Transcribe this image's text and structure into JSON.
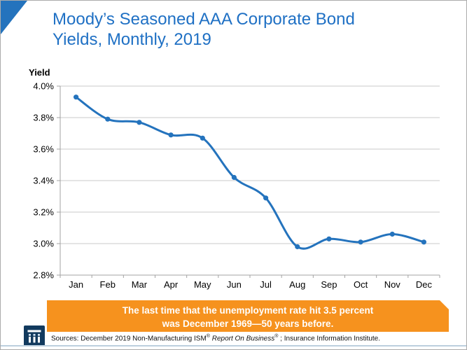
{
  "page": {
    "title_line1": "Moody’s Seasoned AAA Corporate Bond",
    "title_line2": "Yields, Monthly, 2019"
  },
  "chart_data": {
    "type": "line",
    "title": "Moody’s Seasoned AAA Corporate Bond Yields, Monthly, 2019",
    "ylabel": "Yield",
    "xlabel": "",
    "categories": [
      "Jan",
      "Feb",
      "Mar",
      "Apr",
      "May",
      "Jun",
      "Jul",
      "Aug",
      "Sep",
      "Oct",
      "Nov",
      "Dec"
    ],
    "series": [
      {
        "name": "Moody's Seasoned AAA Corporate Bond Yield",
        "values": [
          3.93,
          3.79,
          3.77,
          3.69,
          3.67,
          3.42,
          3.29,
          2.98,
          3.03,
          3.01,
          3.06,
          3.01
        ]
      }
    ],
    "ylim": [
      2.8,
      4.0
    ],
    "yticks": {
      "values": [
        4.0,
        3.8,
        3.6,
        3.4,
        3.2,
        3.0,
        2.8
      ],
      "labels": [
        "4.0%",
        "3.8%",
        "3.6%",
        "3.4%",
        "3.2%",
        "3.0%",
        "2.8%"
      ]
    },
    "grid": true,
    "legend": "none",
    "line_smooth": true
  },
  "banner": {
    "line1": "The last time that the unemployment rate hit 3.5 percent",
    "line2": "was December 1969—50 years before."
  },
  "footer": {
    "logo_name": "iii-logo",
    "sources_prefix": "Sources: December 2019 Non-Manufacturing ISM",
    "sources_reg1": "®",
    "sources_italic": " Report On Business",
    "sources_reg2": "®",
    "sources_suffix": " ; Insurance Information Institute."
  },
  "colors": {
    "title_blue": "#1f70c4",
    "line_blue": "#2473bd",
    "orange": "#f6921e",
    "navy": "#123a5e",
    "gridline": "#c8c8c8",
    "axis": "#a3a3a3",
    "tick_text": "#000000",
    "bottom_rule": "#bccfde"
  }
}
